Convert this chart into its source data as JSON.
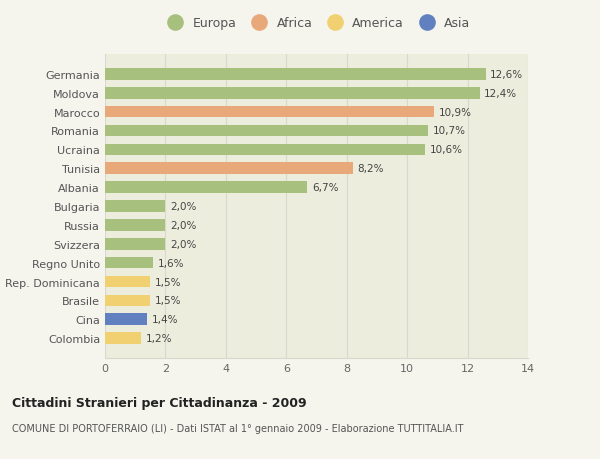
{
  "categories": [
    "Colombia",
    "Cina",
    "Brasile",
    "Rep. Dominicana",
    "Regno Unito",
    "Svizzera",
    "Russia",
    "Bulgaria",
    "Albania",
    "Tunisia",
    "Ucraina",
    "Romania",
    "Marocco",
    "Moldova",
    "Germania"
  ],
  "values": [
    1.2,
    1.4,
    1.5,
    1.5,
    1.6,
    2.0,
    2.0,
    2.0,
    6.7,
    8.2,
    10.6,
    10.7,
    10.9,
    12.4,
    12.6
  ],
  "continents": [
    "America",
    "Asia",
    "America",
    "America",
    "Europa",
    "Europa",
    "Europa",
    "Europa",
    "Europa",
    "Africa",
    "Europa",
    "Europa",
    "Africa",
    "Europa",
    "Europa"
  ],
  "labels": [
    "1,2%",
    "1,4%",
    "1,5%",
    "1,5%",
    "1,6%",
    "2,0%",
    "2,0%",
    "2,0%",
    "6,7%",
    "8,2%",
    "10,6%",
    "10,7%",
    "10,9%",
    "12,4%",
    "12,6%"
  ],
  "colors": {
    "Europa": "#a8c07e",
    "Africa": "#e8a87a",
    "America": "#f0d070",
    "Asia": "#6080c0"
  },
  "legend_order": [
    "Europa",
    "Africa",
    "America",
    "Asia"
  ],
  "title1": "Cittadini Stranieri per Cittadinanza - 2009",
  "title2": "COMUNE DI PORTOFERRAIO (LI) - Dati ISTAT al 1° gennaio 2009 - Elaborazione TUTTITALIA.IT",
  "xlim": [
    0,
    14
  ],
  "xticks": [
    0,
    2,
    4,
    6,
    8,
    10,
    12,
    14
  ],
  "background_color": "#f5f5ee",
  "bar_background": "#ededde",
  "grid_color": "#d8d8cc"
}
